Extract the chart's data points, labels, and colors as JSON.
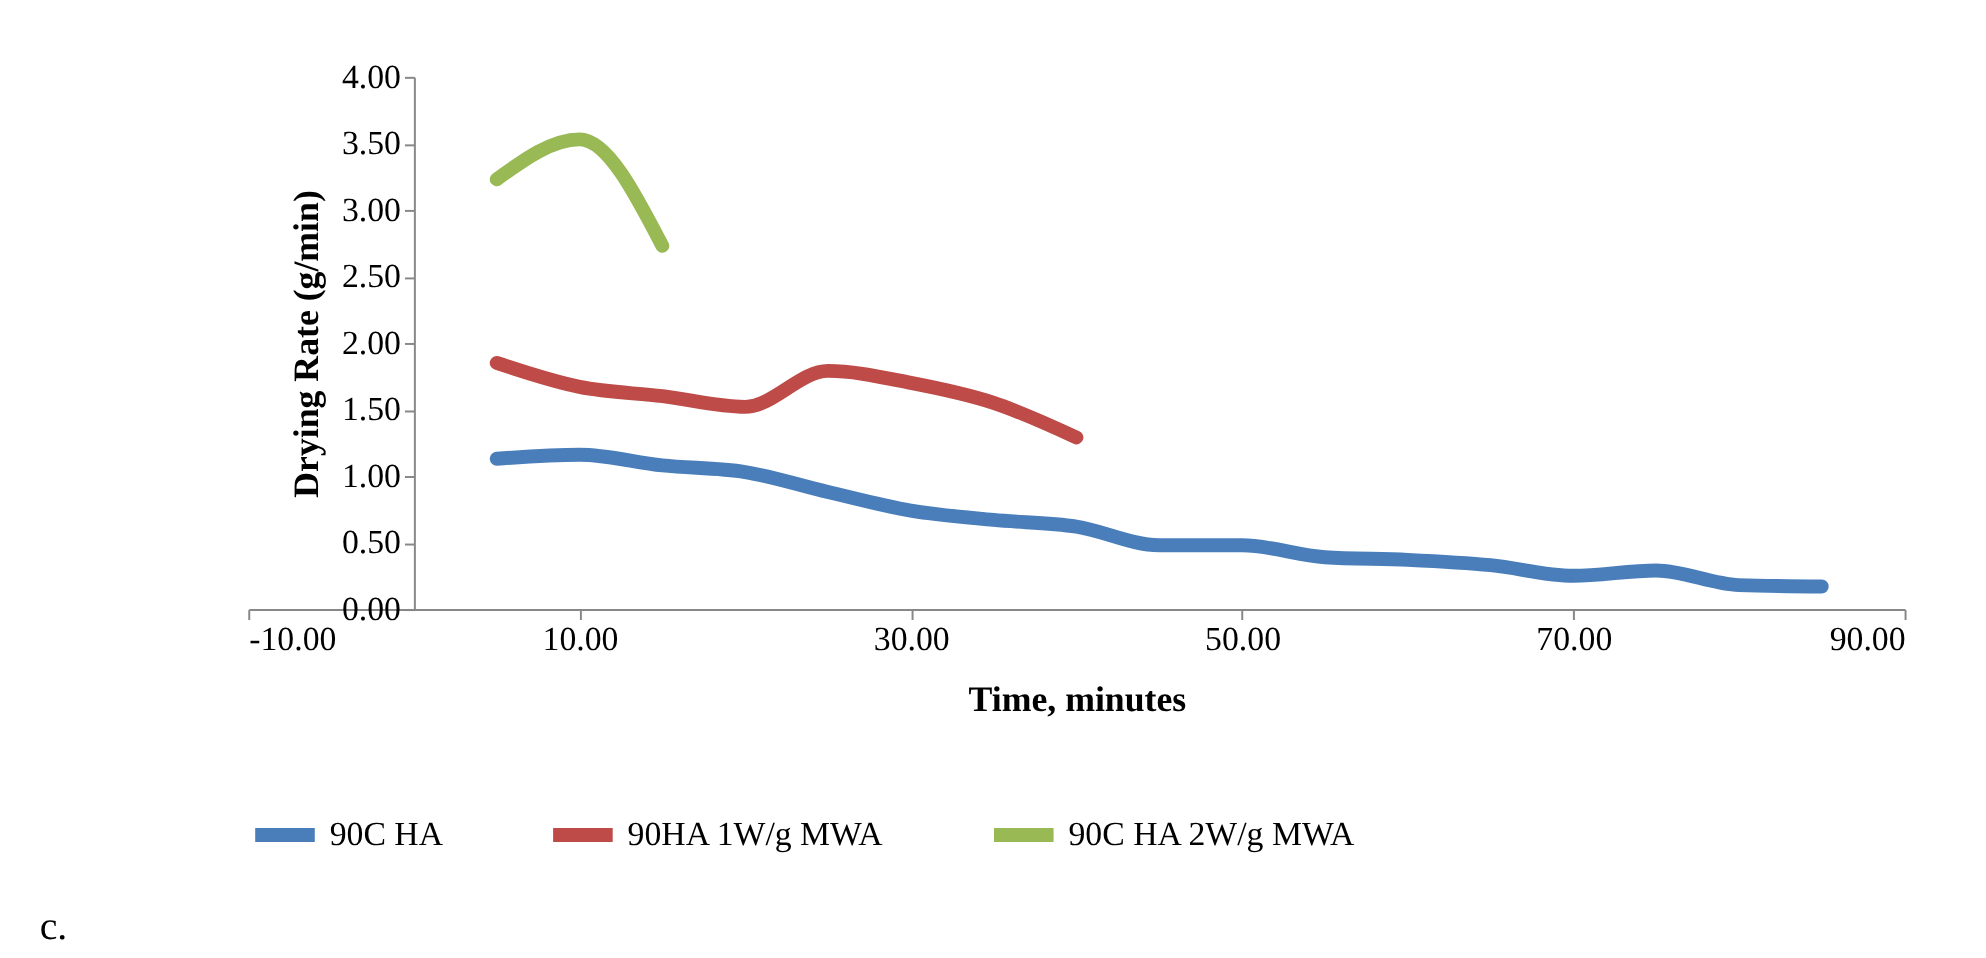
{
  "chart_data": {
    "type": "line",
    "xlabel": "Time, minutes",
    "ylabel": "Drying Rate (g/min)",
    "xlim": [
      -10,
      90
    ],
    "xticks": [
      {
        "value": -10,
        "label": "-10.00"
      },
      {
        "value": 10,
        "label": "10.00"
      },
      {
        "value": 30,
        "label": "30.00"
      },
      {
        "value": 50,
        "label": "50.00"
      },
      {
        "value": 70,
        "label": "70.00"
      },
      {
        "value": 90,
        "label": "90.00"
      }
    ],
    "ylim": [
      0,
      4
    ],
    "yticks": [
      {
        "value": 0,
        "label": "0.00"
      },
      {
        "value": 0.5,
        "label": "0.50"
      },
      {
        "value": 1,
        "label": "1.00"
      },
      {
        "value": 1.5,
        "label": "1.50"
      },
      {
        "value": 2,
        "label": "2.00"
      },
      {
        "value": 2.5,
        "label": "2.50"
      },
      {
        "value": 3,
        "label": "3.00"
      },
      {
        "value": 3.5,
        "label": "3.50"
      },
      {
        "value": 4,
        "label": "4.00"
      }
    ],
    "grid": false,
    "legend": "bottom",
    "marker": "none",
    "line_style": "solid",
    "annotations": [
      "c."
    ],
    "series": [
      {
        "name": "90C HA",
        "color": "#4a7ebb",
        "x": [
          5,
          10,
          15,
          20,
          25,
          30,
          35,
          40,
          45,
          50,
          55,
          60,
          65,
          70,
          75,
          80,
          85
        ],
        "values": [
          1.13,
          1.16,
          1.08,
          1.03,
          0.88,
          0.74,
          0.67,
          0.62,
          0.48,
          0.48,
          0.39,
          0.37,
          0.33,
          0.25,
          0.29,
          0.18,
          0.17
        ]
      },
      {
        "name": "90HA 1W/g MWA",
        "color": "#be4b48",
        "x": [
          5,
          10,
          15,
          20,
          25,
          30,
          35,
          40
        ],
        "values": [
          1.85,
          1.67,
          1.6,
          1.52,
          1.79,
          1.7,
          1.55,
          1.29
        ]
      },
      {
        "name": "90C HA 2W/g MWA",
        "color": "#98b954",
        "x": [
          5,
          10,
          15
        ],
        "values": [
          3.23,
          3.53,
          2.73
        ]
      }
    ]
  }
}
